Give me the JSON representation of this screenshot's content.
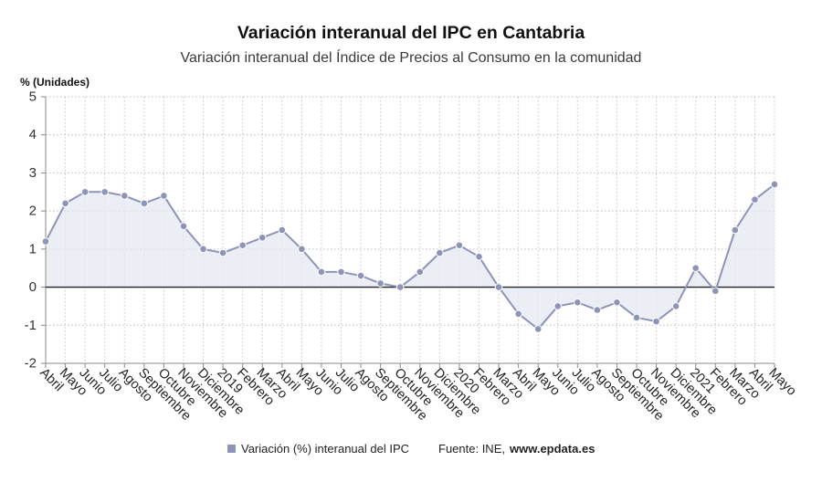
{
  "chart_data": {
    "type": "line",
    "title": "Variación interanual del IPC en Cantabria",
    "subtitle": "Variación interanual del Índice de Precios al Consumo en la comunidad",
    "xlabel": "",
    "ylabel": "% (Unidades)",
    "categories": [
      "Abril",
      "Mayo",
      "Junio",
      "Julio",
      "Agosto",
      "Septiembre",
      "Octubre",
      "Noviembre",
      "Diciembre",
      "2019",
      "Febrero",
      "Marzo",
      "Abril",
      "Mayo",
      "Junio",
      "Julio",
      "Agosto",
      "Septiembre",
      "Octubre",
      "Noviembre",
      "Diciembre",
      "2020",
      "Febrero",
      "Marzo",
      "Abril",
      "Mayo",
      "Junio",
      "Julio",
      "Agosto",
      "Septiembre",
      "Octubre",
      "Noviembre",
      "Diciembre",
      "2021",
      "Febrero",
      "Marzo",
      "Abril",
      "Mayo"
    ],
    "series": [
      {
        "name": "Variación (%) interanual del IPC",
        "values": [
          1.2,
          2.2,
          2.5,
          2.5,
          2.4,
          2.2,
          2.4,
          1.6,
          1.0,
          0.9,
          1.1,
          1.3,
          1.5,
          1.0,
          0.4,
          0.4,
          0.3,
          0.1,
          0.0,
          0.4,
          0.9,
          1.1,
          0.8,
          0.0,
          -0.7,
          -1.1,
          -0.5,
          -0.4,
          -0.6,
          -0.4,
          -0.8,
          -0.9,
          -0.5,
          0.5,
          -0.1,
          1.5,
          2.3,
          2.7
        ]
      }
    ],
    "ylim": [
      -2,
      5
    ],
    "yticks": [
      5,
      4,
      3,
      2,
      1,
      0,
      -1,
      -2
    ],
    "grid": true,
    "area_fill": true,
    "legend": "bottom",
    "colors": {
      "line": "#8e93b8",
      "fill": "#e6e8f3",
      "zero_line": "#222222"
    }
  },
  "source": {
    "prefix": "Fuente: INE,",
    "link": "www.epdata.es"
  }
}
